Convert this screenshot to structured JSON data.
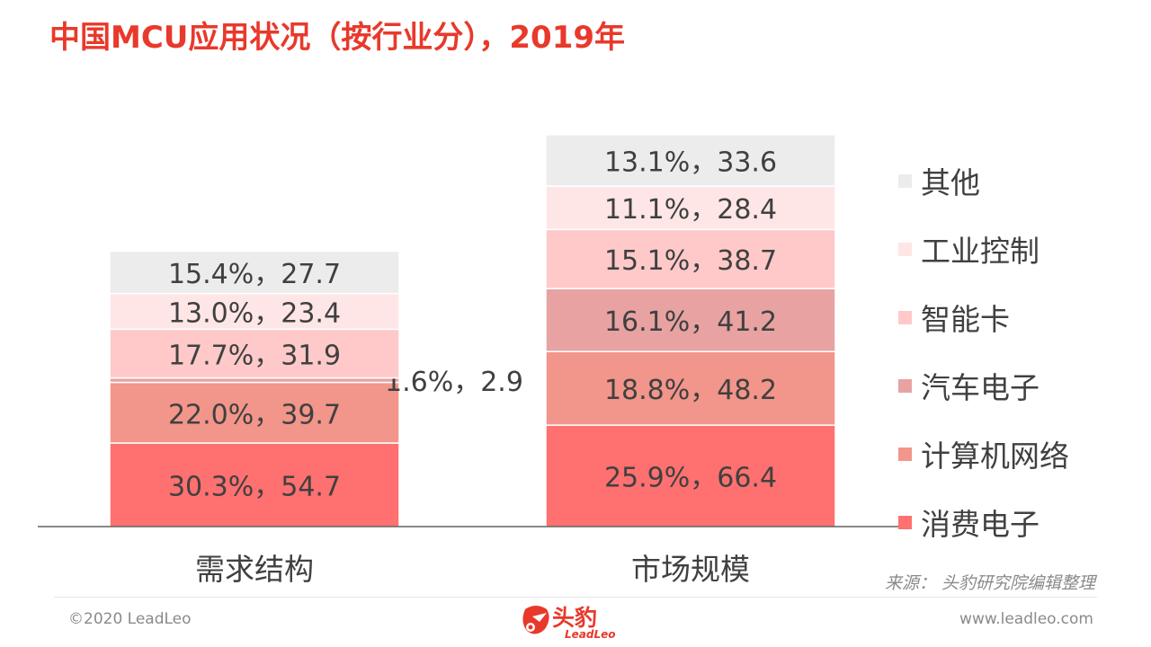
{
  "title": "中国MCU应用状况（按行业分），2019年",
  "source": "来源：  头豹研究院编辑整理",
  "footer": {
    "copyright": "©2020 LeadLeo",
    "website": "www.leadleo.com",
    "logo_cn": "头豹",
    "logo_en": "LeadLeo"
  },
  "chart_data": {
    "type": "bar",
    "stacked": true,
    "categories": [
      "需求结构",
      "市场规模"
    ],
    "series": [
      {
        "name": "消费电子",
        "color": "#ff7070",
        "values": [
          54.7,
          66.4
        ],
        "labels": [
          "30.3%，54.7",
          "25.9%，66.4"
        ]
      },
      {
        "name": "计算机网络",
        "color": "#f2958a",
        "values": [
          39.7,
          48.2
        ],
        "labels": [
          "22.0%，39.7",
          "18.8%，48.2"
        ]
      },
      {
        "name": "汽车电子",
        "color": "#e8a2a2",
        "values": [
          2.9,
          41.2
        ],
        "labels": [
          "1.6%，2.9",
          "16.1%，41.2"
        ]
      },
      {
        "name": "智能卡",
        "color": "#ffc9c9",
        "values": [
          31.9,
          38.7
        ],
        "labels": [
          "17.7%，31.9",
          "15.1%，38.7"
        ]
      },
      {
        "name": "工业控制",
        "color": "#ffe6e6",
        "values": [
          23.4,
          28.4
        ],
        "labels": [
          "13.0%，23.4",
          "11.1%，28.4"
        ]
      },
      {
        "name": "其他",
        "color": "#ececec",
        "values": [
          27.7,
          33.6
        ],
        "labels": [
          "15.4%，27.7",
          "13.1%，33.6"
        ]
      }
    ],
    "legend_position": "right",
    "grid": false
  }
}
